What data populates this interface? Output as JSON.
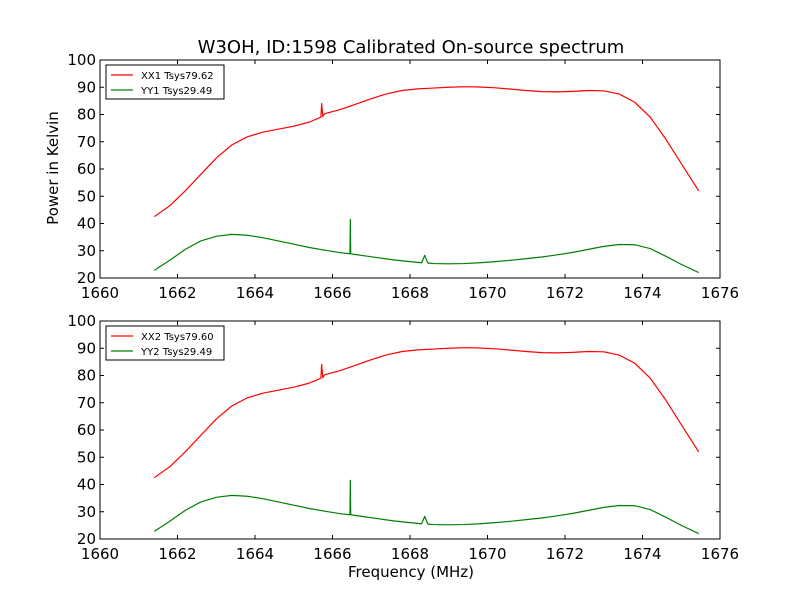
{
  "figure": {
    "title": "W3OH, ID:1598 Calibrated On-source spectrum",
    "xlabel": "Frequency (MHz)",
    "ylabel": "Power in Kelvin"
  },
  "chart_data": [
    {
      "type": "line",
      "xlim": [
        1660,
        1676
      ],
      "ylim": [
        20,
        100
      ],
      "xticks": [
        1660,
        1662,
        1664,
        1666,
        1668,
        1670,
        1672,
        1674,
        1676
      ],
      "yticks": [
        20,
        30,
        40,
        50,
        60,
        70,
        80,
        90,
        100
      ],
      "legend_placement": "top-left",
      "grid": false,
      "series": [
        {
          "name": "XX1 Tsys79.62",
          "color": "#ff0000",
          "x": [
            1661.4,
            1661.8,
            1662.2,
            1662.6,
            1663.0,
            1663.4,
            1663.8,
            1664.2,
            1664.6,
            1665.0,
            1665.4,
            1665.7,
            1665.72,
            1665.75,
            1665.78,
            1665.8,
            1666.2,
            1666.6,
            1667.0,
            1667.4,
            1667.8,
            1668.2,
            1668.6,
            1669.0,
            1669.4,
            1669.8,
            1670.2,
            1670.6,
            1671.0,
            1671.4,
            1671.8,
            1672.2,
            1672.6,
            1673.0,
            1673.4,
            1673.8,
            1674.2,
            1674.6,
            1675.0,
            1675.45
          ],
          "y": [
            42.5,
            46.5,
            52.0,
            58.0,
            64.0,
            68.8,
            71.8,
            73.5,
            74.6,
            75.7,
            77.2,
            79.0,
            84.0,
            79.2,
            80.0,
            80.3,
            81.8,
            83.8,
            85.8,
            87.6,
            88.8,
            89.4,
            89.7,
            90.0,
            90.2,
            90.1,
            89.8,
            89.3,
            88.8,
            88.4,
            88.3,
            88.5,
            88.8,
            88.7,
            87.5,
            84.5,
            79.0,
            71.0,
            62.0,
            52.0
          ]
        },
        {
          "name": "YY1 Tsys29.49",
          "color": "#008000",
          "x": [
            1661.4,
            1661.8,
            1662.2,
            1662.6,
            1663.0,
            1663.4,
            1663.8,
            1664.2,
            1664.6,
            1665.0,
            1665.4,
            1665.8,
            1666.2,
            1666.45,
            1666.46,
            1666.47,
            1666.5,
            1666.8,
            1667.2,
            1667.6,
            1668.0,
            1668.3,
            1668.38,
            1668.46,
            1668.6,
            1669.0,
            1669.4,
            1669.8,
            1670.2,
            1670.6,
            1671.0,
            1671.4,
            1671.8,
            1672.2,
            1672.6,
            1673.0,
            1673.4,
            1673.8,
            1674.2,
            1674.6,
            1675.0,
            1675.45
          ],
          "y": [
            22.8,
            26.5,
            30.5,
            33.6,
            35.3,
            36.0,
            35.7,
            34.8,
            33.6,
            32.4,
            31.2,
            30.2,
            29.3,
            28.9,
            41.5,
            29.0,
            28.8,
            28.2,
            27.4,
            26.6,
            26.0,
            25.6,
            28.3,
            25.5,
            25.3,
            25.2,
            25.3,
            25.6,
            26.0,
            26.5,
            27.1,
            27.7,
            28.5,
            29.4,
            30.5,
            31.6,
            32.3,
            32.2,
            30.8,
            28.0,
            25.0,
            22.0
          ]
        }
      ]
    },
    {
      "type": "line",
      "xlim": [
        1660,
        1676
      ],
      "ylim": [
        20,
        100
      ],
      "xticks": [
        1660,
        1662,
        1664,
        1666,
        1668,
        1670,
        1672,
        1674,
        1676
      ],
      "yticks": [
        20,
        30,
        40,
        50,
        60,
        70,
        80,
        90,
        100
      ],
      "legend_placement": "top-left",
      "grid": false,
      "series": [
        {
          "name": "XX2 Tsys79.60",
          "color": "#ff0000",
          "x": [
            1661.4,
            1661.8,
            1662.2,
            1662.6,
            1663.0,
            1663.4,
            1663.8,
            1664.2,
            1664.6,
            1665.0,
            1665.4,
            1665.7,
            1665.72,
            1665.75,
            1665.78,
            1665.8,
            1666.2,
            1666.6,
            1667.0,
            1667.4,
            1667.8,
            1668.2,
            1668.6,
            1669.0,
            1669.4,
            1669.8,
            1670.2,
            1670.6,
            1671.0,
            1671.4,
            1671.8,
            1672.2,
            1672.6,
            1673.0,
            1673.4,
            1673.8,
            1674.2,
            1674.6,
            1675.0,
            1675.45
          ],
          "y": [
            42.5,
            46.5,
            52.0,
            58.0,
            64.0,
            68.8,
            71.8,
            73.5,
            74.6,
            75.7,
            77.2,
            79.0,
            84.0,
            79.2,
            80.0,
            80.3,
            81.8,
            83.8,
            85.8,
            87.6,
            88.8,
            89.4,
            89.7,
            90.0,
            90.2,
            90.1,
            89.8,
            89.3,
            88.8,
            88.4,
            88.3,
            88.5,
            88.8,
            88.7,
            87.5,
            84.5,
            79.0,
            71.0,
            62.0,
            52.0
          ]
        },
        {
          "name": "YY2 Tsys29.49",
          "color": "#008000",
          "x": [
            1661.4,
            1661.8,
            1662.2,
            1662.6,
            1663.0,
            1663.4,
            1663.8,
            1664.2,
            1664.6,
            1665.0,
            1665.4,
            1665.8,
            1666.2,
            1666.45,
            1666.46,
            1666.47,
            1666.5,
            1666.8,
            1667.2,
            1667.6,
            1668.0,
            1668.3,
            1668.38,
            1668.46,
            1668.6,
            1669.0,
            1669.4,
            1669.8,
            1670.2,
            1670.6,
            1671.0,
            1671.4,
            1671.8,
            1672.2,
            1672.6,
            1673.0,
            1673.4,
            1673.8,
            1674.2,
            1674.6,
            1675.0,
            1675.45
          ],
          "y": [
            22.8,
            26.5,
            30.5,
            33.6,
            35.3,
            36.0,
            35.7,
            34.8,
            33.6,
            32.4,
            31.2,
            30.2,
            29.3,
            28.9,
            41.5,
            29.0,
            28.8,
            28.2,
            27.4,
            26.6,
            26.0,
            25.6,
            28.3,
            25.5,
            25.3,
            25.2,
            25.3,
            25.6,
            26.0,
            26.5,
            27.1,
            27.7,
            28.5,
            29.4,
            30.5,
            31.6,
            32.3,
            32.2,
            30.8,
            28.0,
            25.0,
            22.0
          ]
        }
      ]
    }
  ]
}
